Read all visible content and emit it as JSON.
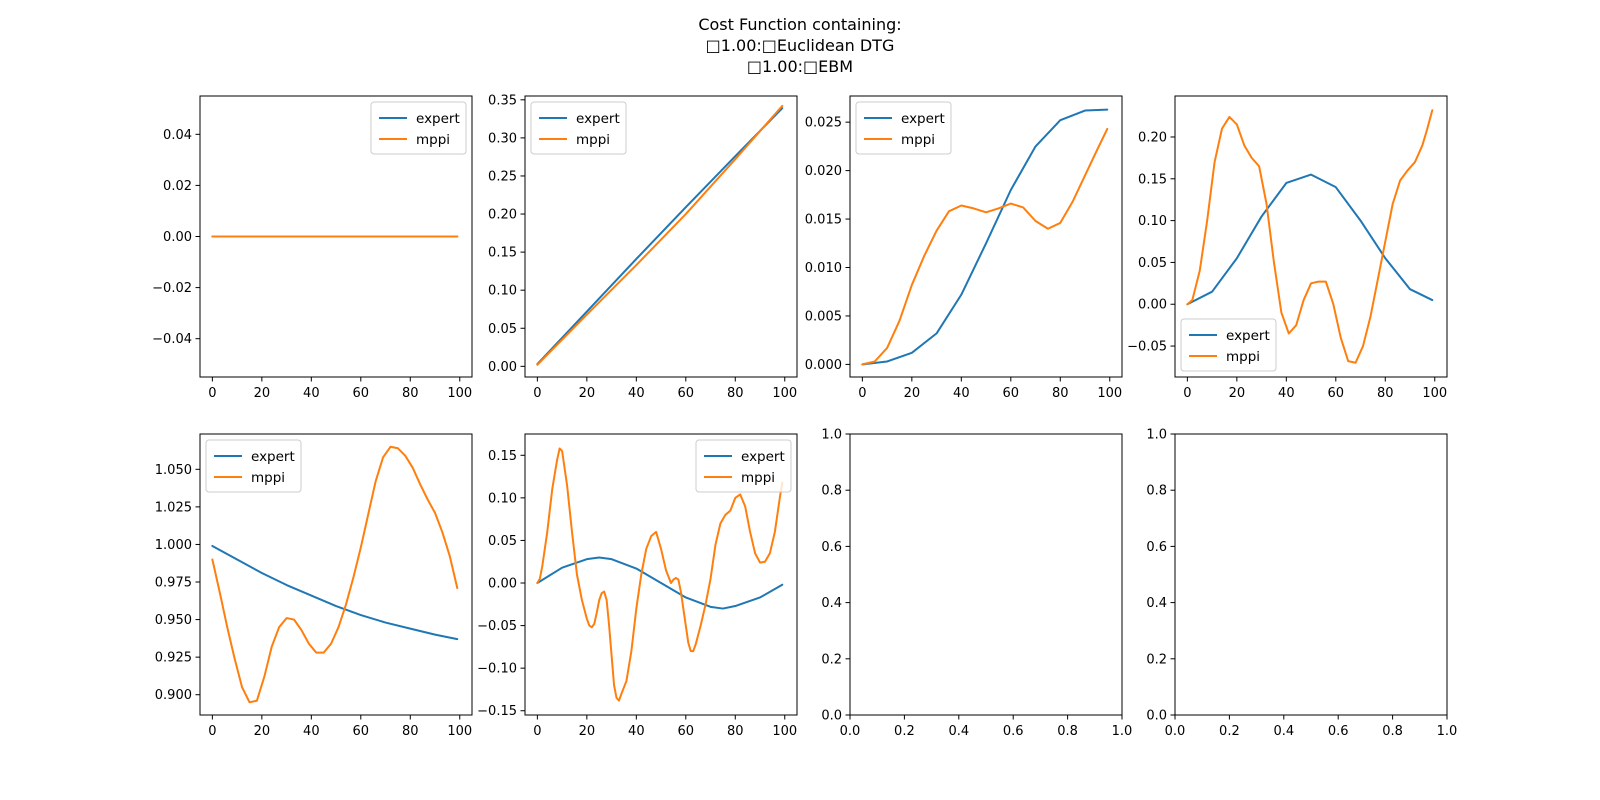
{
  "figure": {
    "title_lines": [
      "Cost Function containing:",
      "□1.00:□Euclidean DTG",
      "□1.00:□EBM"
    ]
  },
  "colors": {
    "expert": "#1f77b4",
    "mppi": "#ff7f0e"
  },
  "chart_data": [
    {
      "type": "line",
      "xlim": [
        -5,
        104.95
      ],
      "ylim": [
        -0.055,
        0.055
      ],
      "xticks": [
        0,
        20,
        40,
        60,
        80,
        100
      ],
      "yticks": [
        -0.04,
        -0.02,
        0.0,
        0.02,
        0.04
      ],
      "ytick_labels": [
        "−0.04",
        "−0.02",
        "0.00",
        "0.02",
        "0.04"
      ],
      "legend": "top-right",
      "series": [
        {
          "name": "expert",
          "x": [
            0,
            99
          ],
          "y": [
            0,
            0
          ]
        },
        {
          "name": "mppi",
          "x": [
            0,
            99
          ],
          "y": [
            0,
            0
          ]
        }
      ]
    },
    {
      "type": "line",
      "xlim": [
        -5,
        104.95
      ],
      "ylim": [
        -0.014,
        0.355
      ],
      "xticks": [
        0,
        20,
        40,
        60,
        80,
        100
      ],
      "yticks": [
        0.0,
        0.05,
        0.1,
        0.15,
        0.2,
        0.25,
        0.3,
        0.35
      ],
      "ytick_labels": [
        "0.00",
        "0.05",
        "0.10",
        "0.15",
        "0.20",
        "0.25",
        "0.30",
        "0.35"
      ],
      "legend": "top-left",
      "series": [
        {
          "name": "expert",
          "x": [
            0,
            20,
            40,
            60,
            80,
            99
          ],
          "y": [
            0.003,
            0.072,
            0.141,
            0.209,
            0.276,
            0.339
          ]
        },
        {
          "name": "mppi",
          "x": [
            0,
            10,
            20,
            40,
            60,
            80,
            99
          ],
          "y": [
            0.002,
            0.035,
            0.068,
            0.133,
            0.2,
            0.272,
            0.342
          ]
        }
      ]
    },
    {
      "type": "line",
      "xlim": [
        -5,
        104.95
      ],
      "ylim": [
        -0.0013,
        0.0277
      ],
      "xticks": [
        0,
        20,
        40,
        60,
        80,
        100
      ],
      "yticks": [
        0.0,
        0.005,
        0.01,
        0.015,
        0.02,
        0.025
      ],
      "ytick_labels": [
        "0.000",
        "0.005",
        "0.010",
        "0.015",
        "0.020",
        "0.025"
      ],
      "legend": "top-left",
      "series": [
        {
          "name": "expert",
          "x": [
            0,
            10,
            20,
            30,
            40,
            50,
            60,
            70,
            80,
            90,
            99
          ],
          "y": [
            0.0,
            0.0003,
            0.0012,
            0.0032,
            0.0072,
            0.0125,
            0.018,
            0.0225,
            0.0252,
            0.0262,
            0.0263
          ]
        },
        {
          "name": "mppi",
          "x": [
            0,
            5,
            10,
            15,
            20,
            25,
            30,
            35,
            40,
            45,
            50,
            55,
            60,
            65,
            70,
            75,
            80,
            85,
            90,
            95,
            99
          ],
          "y": [
            0.0,
            0.0003,
            0.0017,
            0.0045,
            0.0082,
            0.0112,
            0.0138,
            0.0158,
            0.0164,
            0.0161,
            0.0157,
            0.0161,
            0.0166,
            0.0162,
            0.0148,
            0.014,
            0.0146,
            0.0168,
            0.0195,
            0.0222,
            0.0243
          ]
        }
      ]
    },
    {
      "type": "line",
      "xlim": [
        -5,
        104.95
      ],
      "ylim": [
        -0.087,
        0.249
      ],
      "xticks": [
        0,
        20,
        40,
        60,
        80,
        100
      ],
      "yticks": [
        -0.05,
        0.0,
        0.05,
        0.1,
        0.15,
        0.2
      ],
      "ytick_labels": [
        "−0.05",
        "0.00",
        "0.05",
        "0.10",
        "0.15",
        "0.20"
      ],
      "legend": "bottom-left",
      "series": [
        {
          "name": "expert",
          "x": [
            0,
            10,
            20,
            30,
            40,
            50,
            60,
            70,
            80,
            90,
            99
          ],
          "y": [
            0.0,
            0.015,
            0.055,
            0.105,
            0.145,
            0.155,
            0.14,
            0.1,
            0.055,
            0.018,
            0.005
          ]
        },
        {
          "name": "mppi",
          "x": [
            0,
            2,
            5,
            8,
            11,
            14,
            17,
            20,
            23,
            26,
            29,
            32,
            35,
            38,
            41,
            44,
            47,
            50,
            53,
            56,
            59,
            62,
            65,
            68,
            71,
            74,
            77,
            80,
            83,
            86,
            89,
            92,
            95,
            97,
            99
          ],
          "y": [
            0.0,
            0.005,
            0.04,
            0.1,
            0.17,
            0.21,
            0.224,
            0.215,
            0.19,
            0.175,
            0.165,
            0.12,
            0.05,
            -0.01,
            -0.035,
            -0.025,
            0.005,
            0.025,
            0.027,
            0.027,
            0.0,
            -0.04,
            -0.068,
            -0.07,
            -0.05,
            -0.015,
            0.03,
            0.075,
            0.12,
            0.148,
            0.16,
            0.17,
            0.19,
            0.21,
            0.232
          ]
        }
      ]
    },
    {
      "type": "line",
      "xlim": [
        -5,
        104.95
      ],
      "ylim": [
        0.8865,
        1.0735
      ],
      "xticks": [
        0,
        20,
        40,
        60,
        80,
        100
      ],
      "yticks": [
        0.9,
        0.925,
        0.95,
        0.975,
        1.0,
        1.025,
        1.05
      ],
      "ytick_labels": [
        "0.900",
        "0.925",
        "0.950",
        "0.975",
        "1.000",
        "1.025",
        "1.050"
      ],
      "legend": "top-left",
      "series": [
        {
          "name": "expert",
          "x": [
            0,
            10,
            20,
            30,
            40,
            50,
            60,
            70,
            80,
            90,
            99
          ],
          "y": [
            0.999,
            0.99,
            0.981,
            0.973,
            0.966,
            0.959,
            0.953,
            0.948,
            0.944,
            0.94,
            0.937
          ]
        },
        {
          "name": "mppi",
          "x": [
            0,
            3,
            6,
            9,
            12,
            15,
            18,
            21,
            24,
            27,
            30,
            33,
            36,
            39,
            42,
            45,
            48,
            51,
            54,
            57,
            60,
            63,
            66,
            69,
            72,
            75,
            78,
            81,
            84,
            87,
            90,
            93,
            96,
            99
          ],
          "y": [
            0.99,
            0.968,
            0.945,
            0.924,
            0.905,
            0.895,
            0.896,
            0.912,
            0.932,
            0.945,
            0.951,
            0.95,
            0.943,
            0.934,
            0.928,
            0.928,
            0.934,
            0.945,
            0.96,
            0.978,
            0.998,
            1.02,
            1.042,
            1.058,
            1.065,
            1.064,
            1.059,
            1.051,
            1.04,
            1.03,
            1.021,
            1.008,
            0.992,
            0.971
          ]
        }
      ]
    },
    {
      "type": "line",
      "xlim": [
        -5,
        104.95
      ],
      "ylim": [
        -0.155,
        0.175
      ],
      "xticks": [
        0,
        20,
        40,
        60,
        80,
        100
      ],
      "yticks": [
        -0.15,
        -0.1,
        -0.05,
        0.0,
        0.05,
        0.1,
        0.15
      ],
      "ytick_labels": [
        "−0.15",
        "−0.10",
        "−0.05",
        "0.00",
        "0.05",
        "0.10",
        "0.15"
      ],
      "legend": "top-right",
      "series": [
        {
          "name": "expert",
          "x": [
            0,
            10,
            20,
            25,
            30,
            40,
            50,
            60,
            70,
            75,
            80,
            90,
            99
          ],
          "y": [
            0.0,
            0.018,
            0.028,
            0.03,
            0.028,
            0.017,
            0.0,
            -0.017,
            -0.028,
            -0.03,
            -0.027,
            -0.017,
            -0.002
          ]
        },
        {
          "name": "mppi",
          "x": [
            0,
            1,
            2,
            4,
            6,
            8,
            9,
            10,
            12,
            14,
            16,
            18,
            20,
            21,
            22,
            23,
            24,
            25,
            26,
            27,
            28,
            29,
            30,
            31,
            32,
            33,
            34,
            36,
            38,
            40,
            42,
            44,
            46,
            48,
            50,
            52,
            54,
            55,
            56,
            57,
            58,
            59,
            60,
            61,
            62,
            63,
            64,
            66,
            68,
            70,
            72,
            74,
            76,
            78,
            80,
            82,
            84,
            86,
            88,
            90,
            92,
            94,
            96,
            98,
            99
          ],
          "y": [
            0.0,
            0.005,
            0.02,
            0.06,
            0.11,
            0.145,
            0.158,
            0.155,
            0.115,
            0.06,
            0.01,
            -0.02,
            -0.042,
            -0.05,
            -0.052,
            -0.048,
            -0.035,
            -0.02,
            -0.012,
            -0.01,
            -0.02,
            -0.05,
            -0.085,
            -0.12,
            -0.135,
            -0.138,
            -0.13,
            -0.115,
            -0.08,
            -0.03,
            0.01,
            0.04,
            0.055,
            0.06,
            0.04,
            0.015,
            0.0,
            0.004,
            0.006,
            0.004,
            -0.01,
            -0.03,
            -0.05,
            -0.07,
            -0.08,
            -0.08,
            -0.072,
            -0.05,
            -0.025,
            0.005,
            0.045,
            0.07,
            0.08,
            0.085,
            0.1,
            0.104,
            0.09,
            0.06,
            0.035,
            0.024,
            0.025,
            0.035,
            0.06,
            0.1,
            0.118
          ]
        }
      ]
    },
    {
      "type": "line",
      "xlim": [
        0,
        1
      ],
      "ylim": [
        0,
        1
      ],
      "xticks": [
        0.0,
        0.2,
        0.4,
        0.6,
        0.8,
        1.0
      ],
      "xtick_labels": [
        "0.0",
        "0.2",
        "0.4",
        "0.6",
        "0.8",
        "1.0"
      ],
      "yticks": [
        0.0,
        0.2,
        0.4,
        0.6,
        0.8,
        1.0
      ],
      "ytick_labels": [
        "0.0",
        "0.2",
        "0.4",
        "0.6",
        "0.8",
        "1.0"
      ],
      "legend": "none",
      "series": []
    },
    {
      "type": "line",
      "xlim": [
        0,
        1
      ],
      "ylim": [
        0,
        1
      ],
      "xticks": [
        0.0,
        0.2,
        0.4,
        0.6,
        0.8,
        1.0
      ],
      "xtick_labels": [
        "0.0",
        "0.2",
        "0.4",
        "0.6",
        "0.8",
        "1.0"
      ],
      "yticks": [
        0.0,
        0.2,
        0.4,
        0.6,
        0.8,
        1.0
      ],
      "ytick_labels": [
        "0.0",
        "0.2",
        "0.4",
        "0.6",
        "0.8",
        "1.0"
      ],
      "legend": "none",
      "series": []
    }
  ]
}
